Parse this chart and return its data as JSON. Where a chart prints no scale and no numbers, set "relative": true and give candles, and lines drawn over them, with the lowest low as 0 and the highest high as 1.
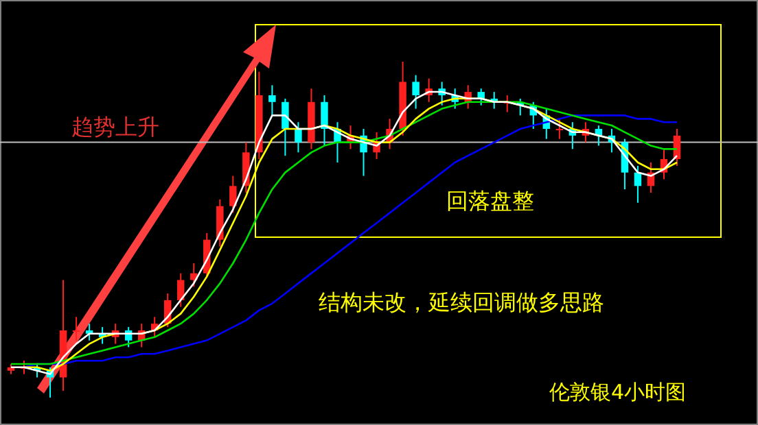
{
  "chart_data": {
    "type": "candlestick",
    "relative": true,
    "categories": [
      null,
      null,
      null,
      null,
      null,
      null,
      null,
      null,
      null,
      null,
      null,
      null,
      null,
      null,
      null,
      null,
      null,
      null,
      null,
      null,
      null,
      null,
      null,
      null,
      null,
      null,
      null,
      null,
      null,
      null,
      null,
      null,
      null,
      null,
      null,
      null,
      null,
      null,
      null,
      null,
      null,
      null,
      null,
      null,
      null,
      null,
      null,
      null,
      null,
      null,
      null,
      null
    ],
    "ohlc": [
      [
        0.08,
        0.1,
        0.07,
        0.09
      ],
      [
        0.09,
        0.11,
        0.07,
        0.09
      ],
      [
        0.09,
        0.1,
        0.06,
        0.08
      ],
      [
        0.08,
        0.09,
        0.0,
        0.06
      ],
      [
        0.06,
        0.35,
        0.02,
        0.2
      ],
      [
        0.2,
        0.24,
        0.17,
        0.2
      ],
      [
        0.2,
        0.22,
        0.17,
        0.19
      ],
      [
        0.19,
        0.21,
        0.16,
        0.18
      ],
      [
        0.18,
        0.22,
        0.16,
        0.2
      ],
      [
        0.2,
        0.21,
        0.15,
        0.17
      ],
      [
        0.17,
        0.22,
        0.15,
        0.2
      ],
      [
        0.2,
        0.24,
        0.18,
        0.22
      ],
      [
        0.22,
        0.31,
        0.21,
        0.29
      ],
      [
        0.29,
        0.37,
        0.27,
        0.35
      ],
      [
        0.35,
        0.4,
        0.33,
        0.37
      ],
      [
        0.37,
        0.49,
        0.36,
        0.47
      ],
      [
        0.47,
        0.59,
        0.45,
        0.57
      ],
      [
        0.57,
        0.66,
        0.55,
        0.63
      ],
      [
        0.63,
        0.76,
        0.61,
        0.73
      ],
      [
        0.73,
        0.97,
        0.71,
        0.9
      ],
      [
        0.9,
        0.93,
        0.84,
        0.88
      ],
      [
        0.88,
        0.89,
        0.72,
        0.8
      ],
      [
        0.8,
        0.82,
        0.73,
        0.76
      ],
      [
        0.76,
        0.92,
        0.74,
        0.88
      ],
      [
        0.88,
        0.9,
        0.75,
        0.8
      ],
      [
        0.8,
        0.82,
        0.7,
        0.76
      ],
      [
        0.76,
        0.81,
        0.74,
        0.78
      ],
      [
        0.78,
        0.8,
        0.66,
        0.73
      ],
      [
        0.73,
        0.79,
        0.71,
        0.76
      ],
      [
        0.76,
        0.83,
        0.74,
        0.8
      ],
      [
        0.8,
        1.0,
        0.78,
        0.94
      ],
      [
        0.94,
        0.96,
        0.86,
        0.9
      ],
      [
        0.9,
        0.95,
        0.88,
        0.92
      ],
      [
        0.92,
        0.94,
        0.87,
        0.9
      ],
      [
        0.9,
        0.92,
        0.86,
        0.88
      ],
      [
        0.88,
        0.93,
        0.86,
        0.91
      ],
      [
        0.91,
        0.92,
        0.87,
        0.89
      ],
      [
        0.89,
        0.91,
        0.86,
        0.88
      ],
      [
        0.88,
        0.9,
        0.85,
        0.88
      ],
      [
        0.88,
        0.89,
        0.84,
        0.87
      ],
      [
        0.87,
        0.88,
        0.8,
        0.84
      ],
      [
        0.84,
        0.86,
        0.77,
        0.8
      ],
      [
        0.8,
        0.83,
        0.77,
        0.8
      ],
      [
        0.8,
        0.82,
        0.74,
        0.78
      ],
      [
        0.78,
        0.82,
        0.76,
        0.8
      ],
      [
        0.8,
        0.81,
        0.75,
        0.78
      ],
      [
        0.78,
        0.8,
        0.73,
        0.76
      ],
      [
        0.76,
        0.77,
        0.62,
        0.67
      ],
      [
        0.67,
        0.69,
        0.58,
        0.63
      ],
      [
        0.63,
        0.7,
        0.61,
        0.67
      ],
      [
        0.67,
        0.74,
        0.65,
        0.71
      ],
      [
        0.71,
        0.8,
        0.69,
        0.78
      ]
    ],
    "series": [
      {
        "type": "line",
        "color": "#0000ff",
        "values": [
          null,
          0.09,
          0.1,
          0.1,
          0.1,
          0.11,
          0.11,
          0.11,
          0.12,
          0.12,
          0.13,
          0.13,
          0.14,
          0.15,
          0.16,
          0.17,
          0.19,
          0.21,
          0.23,
          0.26,
          0.28,
          0.31,
          0.34,
          0.37,
          0.4,
          0.43,
          0.46,
          0.49,
          0.52,
          0.55,
          0.58,
          0.61,
          0.64,
          0.67,
          0.7,
          0.72,
          0.74,
          0.76,
          0.78,
          0.8,
          0.81,
          0.82,
          0.83,
          0.84,
          0.84,
          0.84,
          0.84,
          0.84,
          0.83,
          0.83,
          0.82,
          0.82
        ]
      },
      {
        "type": "line",
        "color": "#00e000",
        "values": [
          0.1,
          0.1,
          0.1,
          0.1,
          0.11,
          0.12,
          0.13,
          0.14,
          0.15,
          0.16,
          0.17,
          0.18,
          0.2,
          0.22,
          0.25,
          0.29,
          0.34,
          0.4,
          0.47,
          0.55,
          0.62,
          0.67,
          0.7,
          0.73,
          0.75,
          0.76,
          0.76,
          0.76,
          0.77,
          0.78,
          0.8,
          0.82,
          0.84,
          0.86,
          0.87,
          0.88,
          0.88,
          0.88,
          0.88,
          0.88,
          0.87,
          0.86,
          0.85,
          0.84,
          0.83,
          0.82,
          0.81,
          0.79,
          0.77,
          0.75,
          0.74,
          0.74
        ]
      },
      {
        "type": "line",
        "color": "#ffff00",
        "values": [
          null,
          0.09,
          0.09,
          0.08,
          0.1,
          0.13,
          0.16,
          0.18,
          0.19,
          null,
          0.19,
          0.2,
          0.22,
          0.25,
          0.3,
          0.36,
          0.44,
          0.52,
          0.6,
          0.7,
          0.77,
          0.8,
          0.8,
          0.8,
          0.81,
          0.8,
          0.78,
          0.77,
          0.76,
          0.76,
          0.79,
          0.83,
          0.86,
          0.88,
          0.89,
          0.89,
          0.89,
          0.88,
          0.88,
          0.87,
          0.86,
          0.84,
          0.82,
          0.8,
          0.79,
          0.78,
          0.77,
          0.74,
          0.7,
          0.68,
          0.68,
          0.7
        ]
      },
      {
        "type": "line",
        "color": "#ffffff",
        "values": [
          0.09,
          0.09,
          0.08,
          0.07,
          0.12,
          0.16,
          0.19,
          0.19,
          0.19,
          0.19,
          0.19,
          0.2,
          0.24,
          0.29,
          0.34,
          0.41,
          0.49,
          0.56,
          0.65,
          0.76,
          0.84,
          0.84,
          0.8,
          0.8,
          0.81,
          0.79,
          0.77,
          0.76,
          0.75,
          0.78,
          0.85,
          0.89,
          0.91,
          0.91,
          0.9,
          0.89,
          0.89,
          0.88,
          0.88,
          0.87,
          0.86,
          0.83,
          0.81,
          0.79,
          0.79,
          0.78,
          0.77,
          0.72,
          0.67,
          0.66,
          0.68,
          0.72
        ]
      }
    ],
    "ref_lines": [
      {
        "axis": "y",
        "value": 0.76,
        "color": "#c0c0c0"
      }
    ],
    "annotations": [
      "趋势上升",
      "回落盘整",
      "结构未改，延续回调做多思路",
      "伦敦银4小时图"
    ]
  }
}
